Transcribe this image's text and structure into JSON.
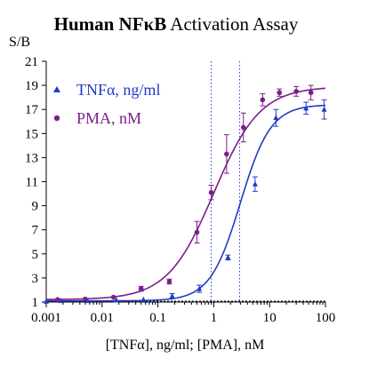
{
  "chart_data": {
    "type": "scatter",
    "title_bold": "Human NFκB",
    "title_rest": " Activation Assay",
    "ylabel": "S/B",
    "xlabel": "[TNFα], ng/ml;  [PMA], nM",
    "xscale": "log",
    "xlim": [
      0.001,
      100
    ],
    "ylim": [
      1,
      21
    ],
    "xticks": [
      0.001,
      0.01,
      0.1,
      1,
      10,
      100
    ],
    "xtick_labels": [
      "0.001",
      "0.01",
      "0.1",
      "1",
      "10",
      "100"
    ],
    "yticks": [
      1,
      3,
      5,
      7,
      9,
      11,
      13,
      15,
      17,
      19,
      21
    ],
    "ytick_labels": [
      "1",
      "3",
      "5",
      "7",
      "9",
      "11",
      "13",
      "15",
      "17",
      "19",
      "21"
    ],
    "baseline_y": 1.0,
    "vlines": [
      0.9,
      2.9
    ],
    "legend_position": "top-left",
    "series": [
      {
        "name": "TNFα, ng/ml",
        "color": "#1f3cc7",
        "marker": "triangle",
        "bottom": 1.1,
        "top": 17.4,
        "ec50": 3.0,
        "hill": 1.6,
        "x": [
          0.001,
          0.0018,
          0.0055,
          0.018,
          0.055,
          0.18,
          0.55,
          1.8,
          5.5,
          13,
          45,
          95
        ],
        "y": [
          1.05,
          1.1,
          1.1,
          1.15,
          1.2,
          1.5,
          2.1,
          4.7,
          10.8,
          16.3,
          17.1,
          17.0
        ],
        "err": [
          0,
          0,
          0,
          0,
          0,
          0.2,
          0.3,
          0.2,
          0.6,
          0.7,
          0.5,
          0.8
        ]
      },
      {
        "name": "PMA, nM",
        "color": "#7d1d8c",
        "marker": "circle",
        "bottom": 1.2,
        "top": 18.9,
        "ec50": 1.0,
        "hill": 1.05,
        "x": [
          0.0016,
          0.005,
          0.016,
          0.05,
          0.16,
          0.5,
          0.9,
          1.7,
          3.4,
          7.5,
          15,
          30,
          55
        ],
        "y": [
          1.2,
          1.25,
          1.4,
          2.1,
          2.7,
          6.8,
          10.1,
          13.3,
          15.5,
          17.8,
          18.4,
          18.5,
          18.4
        ],
        "err": [
          0,
          0,
          0,
          0.2,
          0.2,
          0.9,
          0.6,
          1.6,
          1.2,
          0.5,
          0.3,
          0.4,
          0.6
        ]
      }
    ]
  }
}
